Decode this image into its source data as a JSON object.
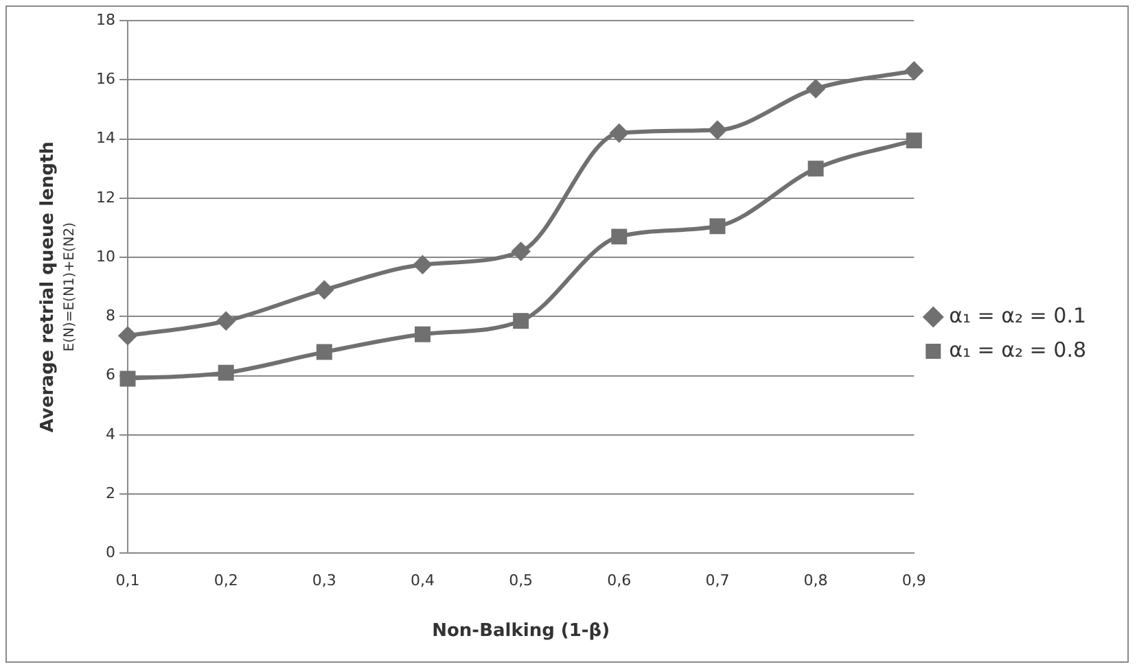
{
  "chart_data": {
    "type": "line",
    "xlabel": "Non-Balking (1-β)",
    "ylabel": "Average retrial queue length",
    "annotations": [
      "E(N)=E(N1)+E(N2)"
    ],
    "categories": [
      "0,1",
      "0,2",
      "0,3",
      "0,4",
      "0,5",
      "0,6",
      "0,7",
      "0,8",
      "0,9"
    ],
    "series": [
      {
        "name": "α₁ = α₂ = 0.1",
        "color": "#707070",
        "marker": "diamond",
        "values": [
          7.35,
          7.85,
          8.9,
          9.75,
          10.2,
          14.2,
          14.3,
          15.7,
          16.3
        ]
      },
      {
        "name": "α₁ = α₂ = 0.8",
        "color": "#707070",
        "marker": "square",
        "values": [
          5.9,
          6.1,
          6.8,
          7.4,
          7.85,
          10.7,
          11.05,
          13.0,
          13.95
        ]
      }
    ],
    "ylim": [
      0,
      18
    ],
    "yticks": [
      0,
      2,
      4,
      6,
      8,
      10,
      12,
      14,
      16,
      18
    ],
    "grid": "y",
    "legend": "right"
  }
}
